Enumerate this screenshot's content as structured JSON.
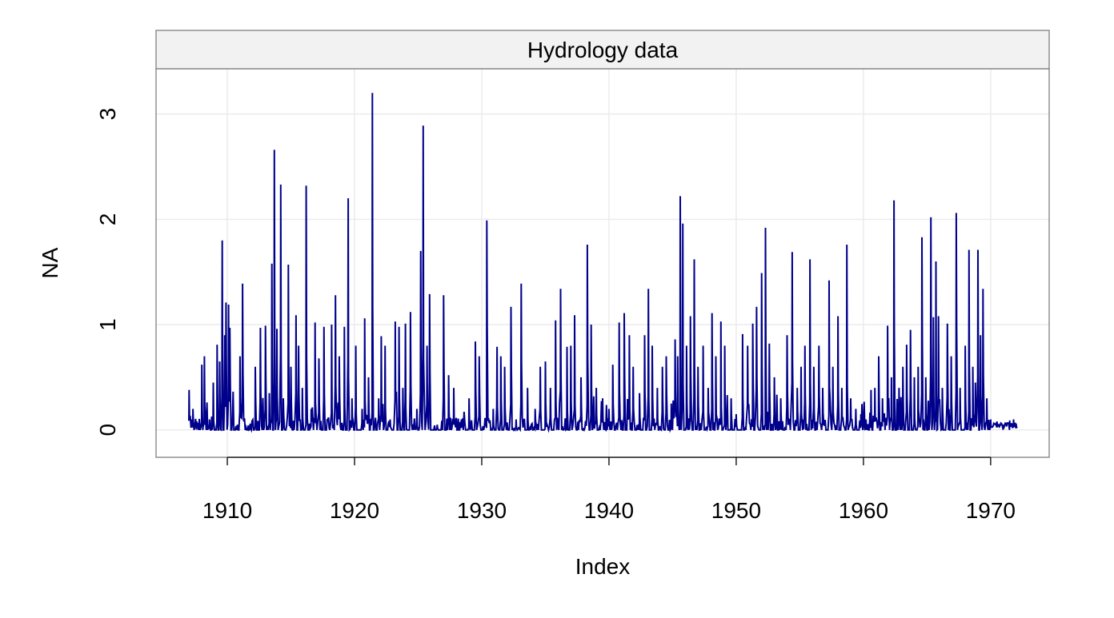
{
  "chart_data": {
    "type": "line",
    "title": "Hydrology data",
    "xlabel": "Index",
    "ylabel": "NA",
    "xlim": [
      1904.4,
      1974.6
    ],
    "ylim": [
      -0.26,
      3.43
    ],
    "x_ticks": [
      1910,
      1920,
      1930,
      1940,
      1950,
      1960,
      1970
    ],
    "y_ticks": [
      0,
      1,
      2,
      3
    ],
    "grid": true,
    "colors": {
      "series": "#00008B",
      "strip": "#F2F2F2",
      "grid": "#EBEBEB",
      "frame": "#7F7F7F"
    },
    "series": [
      {
        "peaks": [
          [
            1907.0,
            0.38
          ],
          [
            1907.3,
            0.2
          ],
          [
            1907.6,
            0.08
          ],
          [
            1908.0,
            0.62
          ],
          [
            1908.2,
            0.7
          ],
          [
            1908.6,
            0.1
          ],
          [
            1908.9,
            0.45
          ],
          [
            1909.2,
            0.81
          ],
          [
            1909.4,
            0.65
          ],
          [
            1909.6,
            1.8
          ],
          [
            1909.8,
            0.9
          ],
          [
            1909.9,
            1.21
          ],
          [
            1910.1,
            1.19
          ],
          [
            1910.2,
            0.97
          ],
          [
            1911.0,
            0.7
          ],
          [
            1911.2,
            1.39
          ],
          [
            1911.8,
            0.06
          ],
          [
            1912.2,
            0.6
          ],
          [
            1912.6,
            0.97
          ],
          [
            1913.0,
            0.99
          ],
          [
            1913.3,
            0.35
          ],
          [
            1913.5,
            1.58
          ],
          [
            1913.7,
            2.66
          ],
          [
            1913.9,
            0.96
          ],
          [
            1914.2,
            2.33
          ],
          [
            1914.4,
            0.3
          ],
          [
            1914.8,
            1.57
          ],
          [
            1915.0,
            0.6
          ],
          [
            1915.4,
            1.09
          ],
          [
            1915.6,
            0.8
          ],
          [
            1915.9,
            0.4
          ],
          [
            1916.2,
            2.32
          ],
          [
            1916.6,
            0.2
          ],
          [
            1916.9,
            1.02
          ],
          [
            1917.2,
            0.68
          ],
          [
            1917.6,
            0.98
          ],
          [
            1918.2,
            1.0
          ],
          [
            1918.5,
            1.28
          ],
          [
            1918.8,
            0.7
          ],
          [
            1919.2,
            0.98
          ],
          [
            1919.5,
            2.2
          ],
          [
            1919.8,
            0.3
          ],
          [
            1920.1,
            0.8
          ],
          [
            1920.6,
            0.2
          ],
          [
            1920.8,
            1.06
          ],
          [
            1921.1,
            0.5
          ],
          [
            1921.4,
            3.2
          ],
          [
            1921.9,
            0.3
          ],
          [
            1922.1,
            0.89
          ],
          [
            1922.4,
            0.8
          ],
          [
            1922.8,
            0.1
          ],
          [
            1923.2,
            1.03
          ],
          [
            1923.5,
            0.98
          ],
          [
            1923.8,
            0.4
          ],
          [
            1924.0,
            1.01
          ],
          [
            1924.4,
            1.12
          ],
          [
            1924.9,
            0.2
          ],
          [
            1925.2,
            1.7
          ],
          [
            1925.4,
            2.89
          ],
          [
            1925.7,
            0.8
          ],
          [
            1925.9,
            1.29
          ],
          [
            1926.5,
            0.05
          ],
          [
            1927.0,
            1.28
          ],
          [
            1927.4,
            0.52
          ],
          [
            1927.8,
            0.4
          ],
          [
            1928.4,
            0.1
          ],
          [
            1929.0,
            0.3
          ],
          [
            1929.5,
            0.84
          ],
          [
            1929.8,
            0.7
          ],
          [
            1930.4,
            1.99
          ],
          [
            1930.9,
            0.2
          ],
          [
            1931.2,
            0.79
          ],
          [
            1931.5,
            0.7
          ],
          [
            1931.8,
            0.6
          ],
          [
            1932.3,
            1.17
          ],
          [
            1932.7,
            0.1
          ],
          [
            1933.1,
            1.39
          ],
          [
            1933.6,
            0.4
          ],
          [
            1934.2,
            0.2
          ],
          [
            1934.6,
            0.6
          ],
          [
            1935.0,
            0.65
          ],
          [
            1935.4,
            0.4
          ],
          [
            1935.8,
            1.04
          ],
          [
            1936.2,
            1.34
          ],
          [
            1936.7,
            0.79
          ],
          [
            1937.0,
            0.8
          ],
          [
            1937.3,
            1.09
          ],
          [
            1937.8,
            0.5
          ],
          [
            1938.3,
            1.76
          ],
          [
            1938.6,
            1.0
          ],
          [
            1939.0,
            0.4
          ],
          [
            1939.5,
            0.3
          ],
          [
            1940.0,
            0.2
          ],
          [
            1940.3,
            0.62
          ],
          [
            1940.8,
            1.02
          ],
          [
            1941.2,
            1.11
          ],
          [
            1941.6,
            0.9
          ],
          [
            1941.9,
            0.6
          ],
          [
            1942.4,
            0.35
          ],
          [
            1942.8,
            0.9
          ],
          [
            1943.1,
            1.34
          ],
          [
            1943.4,
            0.8
          ],
          [
            1943.8,
            0.4
          ],
          [
            1944.2,
            0.6
          ],
          [
            1944.5,
            0.7
          ],
          [
            1944.9,
            0.25
          ],
          [
            1945.2,
            0.86
          ],
          [
            1945.4,
            0.7
          ],
          [
            1945.6,
            2.22
          ],
          [
            1945.8,
            1.96
          ],
          [
            1946.1,
            0.8
          ],
          [
            1946.4,
            1.08
          ],
          [
            1946.7,
            1.62
          ],
          [
            1947.0,
            0.6
          ],
          [
            1947.4,
            0.8
          ],
          [
            1947.8,
            0.4
          ],
          [
            1948.1,
            1.11
          ],
          [
            1948.4,
            0.7
          ],
          [
            1948.8,
            1.03
          ],
          [
            1949.1,
            0.8
          ],
          [
            1949.6,
            0.3
          ],
          [
            1950.0,
            0.15
          ],
          [
            1950.5,
            0.91
          ],
          [
            1950.9,
            0.8
          ],
          [
            1951.3,
            1.01
          ],
          [
            1951.6,
            1.17
          ],
          [
            1952.0,
            1.49
          ],
          [
            1952.3,
            1.92
          ],
          [
            1952.6,
            0.82
          ],
          [
            1953.0,
            0.5
          ],
          [
            1953.5,
            0.3
          ],
          [
            1954.0,
            0.9
          ],
          [
            1954.4,
            1.69
          ],
          [
            1954.8,
            0.4
          ],
          [
            1955.1,
            0.6
          ],
          [
            1955.4,
            0.8
          ],
          [
            1955.8,
            1.62
          ],
          [
            1956.1,
            0.6
          ],
          [
            1956.5,
            0.8
          ],
          [
            1956.8,
            0.4
          ],
          [
            1957.3,
            1.42
          ],
          [
            1957.6,
            0.6
          ],
          [
            1958.0,
            1.08
          ],
          [
            1958.3,
            0.4
          ],
          [
            1958.7,
            1.76
          ],
          [
            1959.0,
            0.3
          ],
          [
            1959.4,
            0.2
          ],
          [
            1959.8,
            0.15
          ],
          [
            1960.2,
            0.1
          ],
          [
            1960.6,
            0.38
          ],
          [
            1960.9,
            0.4
          ],
          [
            1961.2,
            0.7
          ],
          [
            1961.5,
            0.3
          ],
          [
            1961.9,
            0.99
          ],
          [
            1962.2,
            0.5
          ],
          [
            1962.4,
            2.18
          ],
          [
            1962.8,
            0.4
          ],
          [
            1963.1,
            0.6
          ],
          [
            1963.4,
            0.81
          ],
          [
            1963.7,
            0.95
          ],
          [
            1964.0,
            0.5
          ],
          [
            1964.3,
            0.6
          ],
          [
            1964.6,
            1.83
          ],
          [
            1964.9,
            0.5
          ],
          [
            1965.3,
            2.02
          ],
          [
            1965.5,
            1.07
          ],
          [
            1965.7,
            1.6
          ],
          [
            1965.9,
            1.08
          ],
          [
            1966.2,
            0.4
          ],
          [
            1966.6,
            1.01
          ],
          [
            1966.9,
            0.7
          ],
          [
            1967.3,
            2.06
          ],
          [
            1967.6,
            0.4
          ],
          [
            1968.0,
            0.8
          ],
          [
            1968.3,
            1.71
          ],
          [
            1968.6,
            0.6
          ],
          [
            1968.8,
            0.45
          ],
          [
            1969.0,
            1.71
          ],
          [
            1969.2,
            0.9
          ],
          [
            1969.4,
            1.34
          ],
          [
            1969.7,
            0.3
          ],
          [
            1970.0,
            0.1
          ],
          [
            1970.5,
            0.08
          ],
          [
            1971.0,
            0.05
          ],
          [
            1971.5,
            0.09
          ],
          [
            1971.8,
            0.1
          ],
          [
            1972.0,
            0.06
          ]
        ]
      }
    ]
  }
}
